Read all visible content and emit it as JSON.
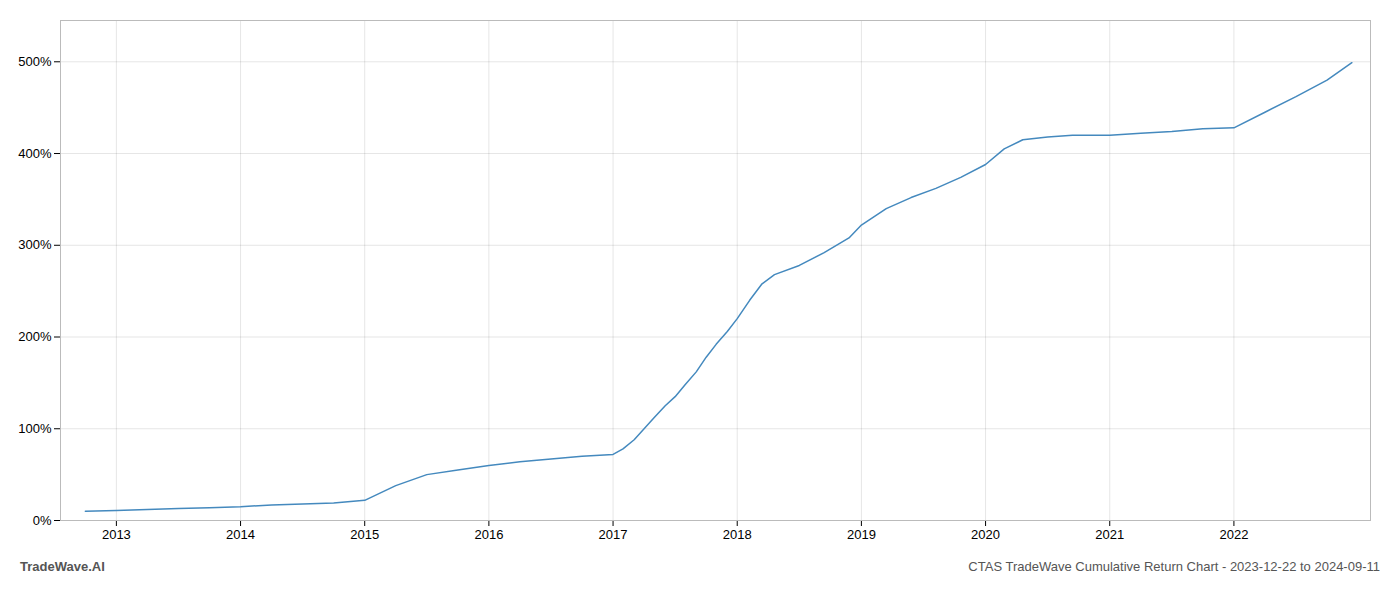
{
  "chart_data": {
    "type": "line",
    "title": "CTAS TradeWave Cumulative Return Chart - 2023-12-22 to 2024-09-11",
    "subtitle": "TradeWave.AI",
    "x": [
      2012.75,
      2013.0,
      2013.25,
      2013.5,
      2013.75,
      2014.0,
      2014.25,
      2014.5,
      2014.75,
      2015.0,
      2015.25,
      2015.5,
      2015.75,
      2016.0,
      2016.25,
      2016.5,
      2016.75,
      2017.0,
      2017.08,
      2017.17,
      2017.25,
      2017.33,
      2017.42,
      2017.5,
      2017.58,
      2017.67,
      2017.75,
      2017.83,
      2017.92,
      2018.0,
      2018.1,
      2018.2,
      2018.3,
      2018.5,
      2018.7,
      2018.9,
      2019.0,
      2019.2,
      2019.4,
      2019.6,
      2019.8,
      2020.0,
      2020.15,
      2020.3,
      2020.5,
      2020.7,
      2020.9,
      2021.0,
      2021.25,
      2021.5,
      2021.75,
      2022.0,
      2022.25,
      2022.5,
      2022.75,
      2022.95
    ],
    "values": [
      10,
      11,
      12,
      13,
      14,
      15,
      17,
      18,
      19,
      22,
      38,
      50,
      55,
      60,
      64,
      67,
      70,
      72,
      78,
      88,
      100,
      112,
      125,
      135,
      148,
      162,
      178,
      192,
      206,
      220,
      240,
      258,
      268,
      278,
      292,
      308,
      322,
      340,
      352,
      362,
      374,
      388,
      405,
      415,
      418,
      420,
      420,
      420,
      422,
      424,
      427,
      428,
      445,
      462,
      480,
      499
    ],
    "color": "#4489be",
    "xlim": [
      2012.55,
      2023.1
    ],
    "xticks": [
      2013,
      2014,
      2015,
      2016,
      2017,
      2018,
      2019,
      2020,
      2021,
      2022
    ],
    "ylim": [
      0,
      545
    ],
    "yticks": [
      {
        "value": 0,
        "label": "0%"
      },
      {
        "value": 100,
        "label": "100%"
      },
      {
        "value": 200,
        "label": "200%"
      },
      {
        "value": 300,
        "label": "300%"
      },
      {
        "value": 400,
        "label": "400%"
      },
      {
        "value": 500,
        "label": "500%"
      }
    ],
    "grid": true
  }
}
